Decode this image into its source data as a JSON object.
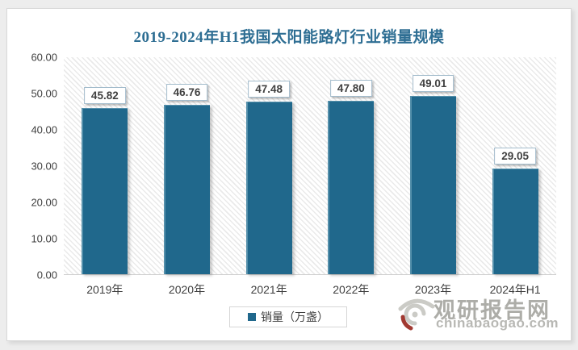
{
  "title": "2019-2024年H1我国太阳能路灯行业销量规模",
  "chart_data": {
    "type": "bar",
    "title": "2019-2024年H1我国太阳能路灯行业销量规模",
    "categories": [
      "2019年",
      "2020年",
      "2021年",
      "2022年",
      "2023年",
      "2024年H1"
    ],
    "values": [
      45.82,
      46.76,
      47.48,
      47.8,
      49.01,
      29.05
    ],
    "value_labels": [
      "45.82",
      "46.76",
      "47.48",
      "47.80",
      "49.01",
      "29.05"
    ],
    "series_name": "销量（万盏）",
    "xlabel": "",
    "ylabel": "",
    "ylim": [
      0,
      60
    ],
    "ytick_labels": [
      "0.00",
      "10.00",
      "20.00",
      "30.00",
      "40.00",
      "50.00",
      "60.00"
    ],
    "grid": false,
    "legend_position": "bottom",
    "bar_color": "#20688c"
  },
  "legend": {
    "label": "销量（万盏）",
    "marker_color": "#20688c"
  },
  "watermark": {
    "site_name": "观研报告网",
    "site_url": "chinabaogao.com"
  },
  "colors": {
    "title": "#2e6e93",
    "bar": "#20688c",
    "bar_highlight": "#5590ab",
    "axis_text": "#3f3f3f",
    "watermark_gray": "#a9a9a4",
    "watermark_red": "#9c2f26"
  }
}
